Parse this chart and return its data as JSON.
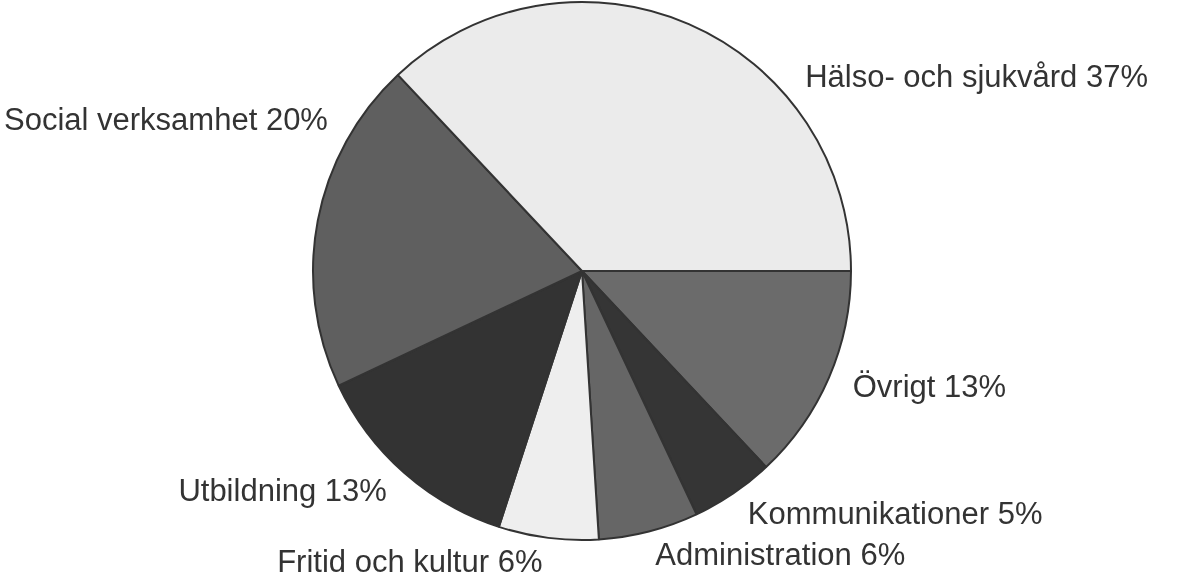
{
  "chart_data": {
    "type": "pie",
    "categories": [
      "Övrigt",
      "Kommunikationer",
      "Administration",
      "Fritid och kultur",
      "Utbildning",
      "Social verksamhet",
      "Hälso- och sjukvård"
    ],
    "values": [
      13,
      5,
      6,
      6,
      13,
      20,
      37
    ],
    "value_labels": [
      "13%",
      "5%",
      "6%",
      "6%",
      "13%",
      "20%",
      "37%"
    ],
    "colors": [
      "#6b6b6b",
      "#353535",
      "#666666",
      "#eeeeee",
      "#333333",
      "#5f5f5f",
      "#ebebeb"
    ]
  }
}
